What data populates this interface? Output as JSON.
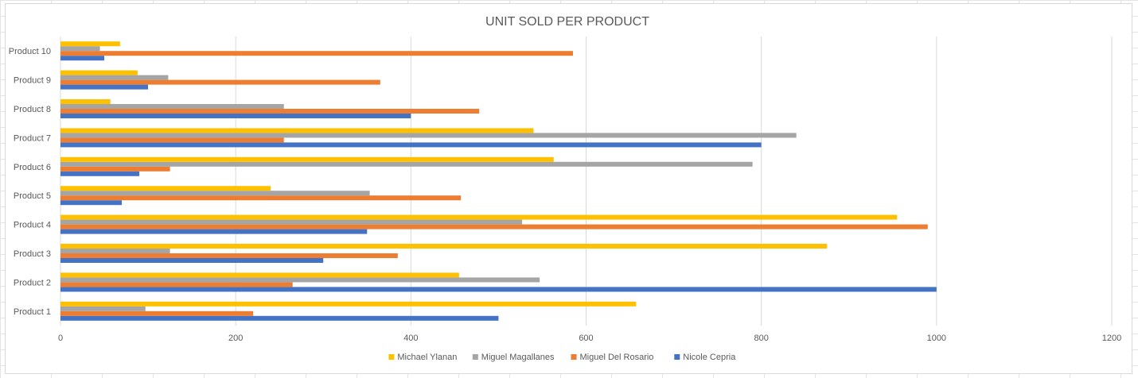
{
  "chart_data": {
    "type": "bar",
    "orientation": "horizontal",
    "title": "UNIT SOLD PER PRODUCT",
    "categories": [
      "Product 1",
      "Product 2",
      "Product 3",
      "Product 4",
      "Product 5",
      "Product 6",
      "Product 7",
      "Product 8",
      "Product 9",
      "Product 10"
    ],
    "series": [
      {
        "name": "Nicole Cepria",
        "color": "#4472C4",
        "values": [
          500,
          1000,
          300,
          350,
          70,
          90,
          800,
          400,
          100,
          50
        ]
      },
      {
        "name": "Miguel Del Rosario",
        "color": "#ED7D31",
        "values": [
          220,
          265,
          385,
          990,
          457,
          125,
          255,
          478,
          365,
          585
        ]
      },
      {
        "name": "Miguel Magallanes",
        "color": "#A5A5A5",
        "values": [
          97,
          547,
          125,
          527,
          353,
          790,
          840,
          255,
          123,
          45
        ]
      },
      {
        "name": "Michael Ylanan",
        "color": "#FFC000",
        "values": [
          657,
          455,
          875,
          955,
          240,
          563,
          540,
          57,
          88,
          68
        ]
      }
    ],
    "xlim": [
      0,
      1200
    ],
    "xticks": [
      0,
      200,
      400,
      600,
      800,
      1000,
      1200
    ],
    "grid": "vertical",
    "legend_position": "bottom",
    "legend_order": [
      "Michael Ylanan",
      "Miguel Magallanes",
      "Miguel Del Rosario",
      "Nicole Cepria"
    ]
  }
}
